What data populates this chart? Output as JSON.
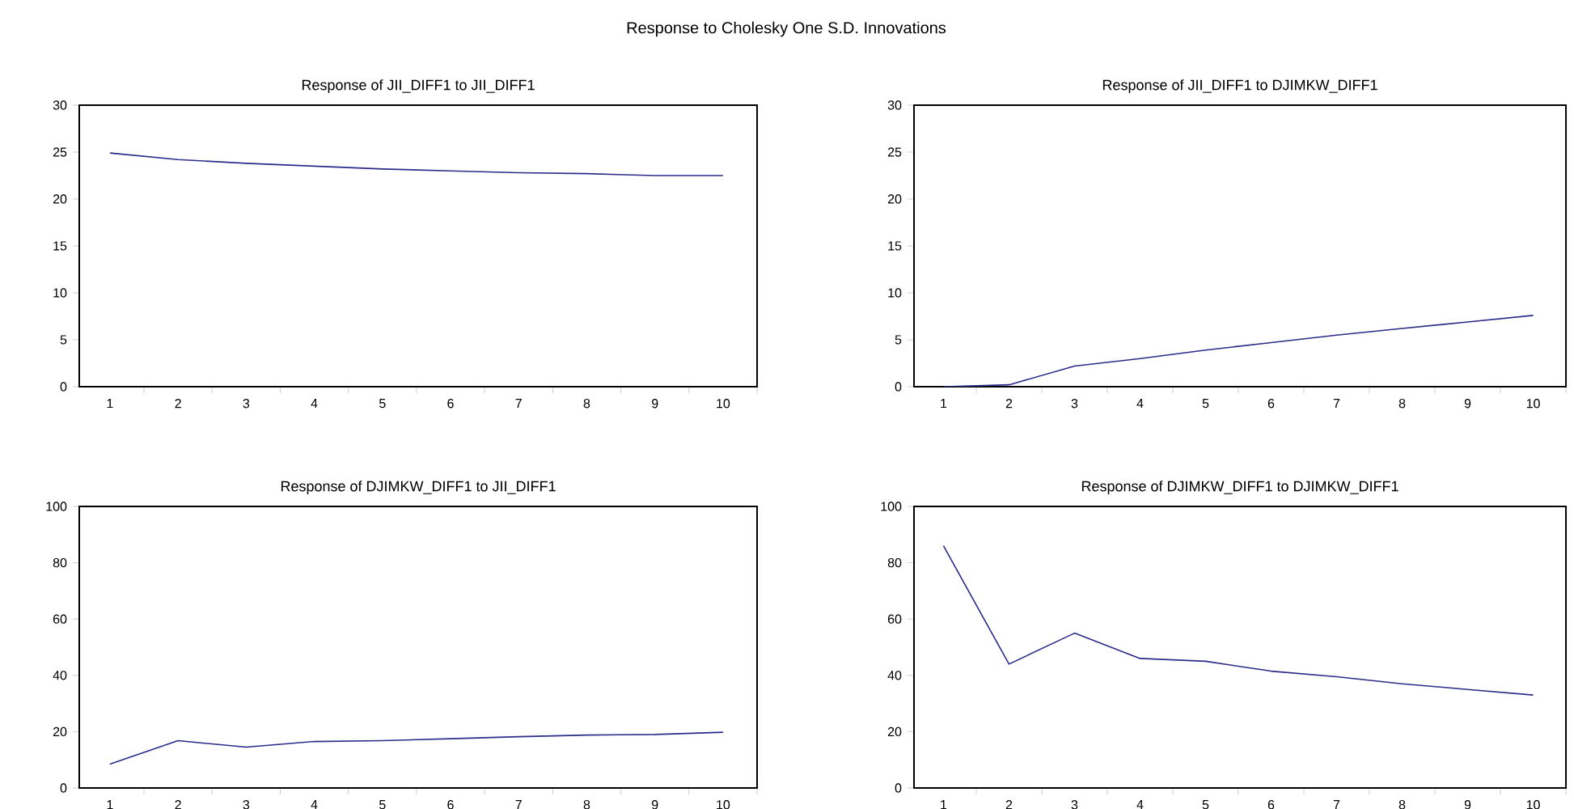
{
  "chart_data": [
    {
      "type": "line",
      "title": "Response of JII_DIFF1 to JII_DIFF1",
      "annotations": [
        "Response to Cholesky One S.D. Innovations"
      ],
      "categories": [
        "1",
        "2",
        "3",
        "4",
        "5",
        "6",
        "7",
        "8",
        "9",
        "10"
      ],
      "values": [
        24.9,
        24.2,
        23.8,
        23.5,
        23.2,
        23.0,
        22.8,
        22.7,
        22.5,
        22.5
      ],
      "color": "#2b2b8a",
      "ylim": [
        0,
        30
      ],
      "yticks": [
        0,
        5,
        10,
        15,
        20,
        25,
        30
      ]
    },
    {
      "type": "line",
      "title": "Response of JII_DIFF1 to DJIMKW_DIFF1",
      "categories": [
        "1",
        "2",
        "3",
        "4",
        "5",
        "6",
        "7",
        "8",
        "9",
        "10"
      ],
      "values": [
        0,
        0.2,
        2.2,
        3.0,
        3.9,
        4.7,
        5.5,
        6.2,
        6.9,
        7.6
      ],
      "color": "#2b2b8a",
      "ylim": [
        0,
        30
      ],
      "yticks": [
        0,
        5,
        10,
        15,
        20,
        25,
        30
      ]
    },
    {
      "type": "line",
      "title": "Response of DJIMKW_DIFF1 to JII_DIFF1",
      "categories": [
        "1",
        "2",
        "3",
        "4",
        "5",
        "6",
        "7",
        "8",
        "9",
        "10"
      ],
      "values": [
        8.5,
        16.8,
        14.5,
        16.5,
        16.8,
        17.5,
        18.2,
        18.8,
        19.0,
        19.8
      ],
      "color": "#2b2b8a",
      "ylim": [
        0,
        100
      ],
      "yticks": [
        0,
        20,
        40,
        60,
        80,
        100
      ]
    },
    {
      "type": "line",
      "title": "Response of DJIMKW_DIFF1 to DJIMKW_DIFF1",
      "categories": [
        "1",
        "2",
        "3",
        "4",
        "5",
        "6",
        "7",
        "8",
        "9",
        "10"
      ],
      "values": [
        86,
        44,
        55,
        46,
        45,
        41.5,
        39.5,
        37,
        35,
        33
      ],
      "color": "#2b2b8a",
      "ylim": [
        0,
        100
      ],
      "yticks": [
        0,
        20,
        40,
        60,
        80,
        100
      ]
    }
  ]
}
